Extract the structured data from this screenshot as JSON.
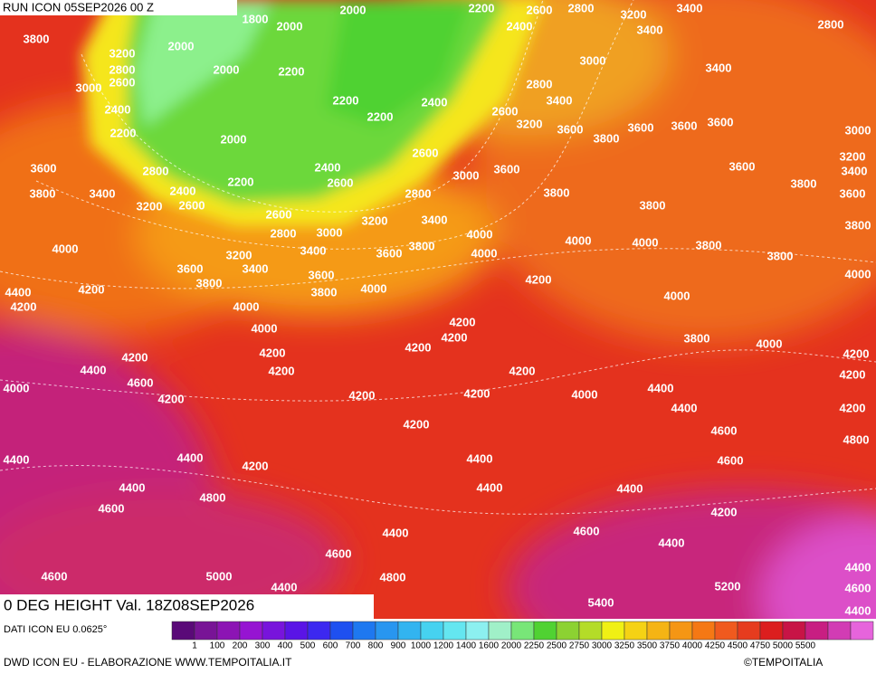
{
  "header": {
    "title": "RUN ICON 05SEP2026 00 Z"
  },
  "map": {
    "contour_labels": [
      "1800",
      "2000",
      "2000",
      "2200",
      "2600",
      "2800",
      "3200",
      "3400",
      "2400",
      "3400",
      "2800",
      "3800",
      "3200",
      "2000",
      "2800",
      "2000",
      "2200",
      "3000",
      "2600",
      "3000",
      "3400",
      "2800",
      "3400",
      "2200",
      "2400",
      "2600",
      "2400",
      "2200",
      "3200",
      "3600",
      "3600",
      "3600",
      "3600",
      "3000",
      "2200",
      "2000",
      "3800",
      "3200",
      "3600",
      "2400",
      "2600",
      "3400",
      "2800",
      "3000",
      "3600",
      "3600",
      "2200",
      "2600",
      "3800",
      "3800",
      "3400",
      "2400",
      "2800",
      "3800",
      "3600",
      "3200",
      "2600",
      "3800",
      "2600",
      "3200",
      "3400",
      "3800",
      "2800",
      "3000",
      "4000",
      "4000",
      "3400",
      "3800",
      "4000",
      "4000",
      "3800",
      "4000",
      "3200",
      "3600",
      "3800",
      "3600",
      "3400",
      "3600",
      "4000",
      "3800",
      "4200",
      "4400",
      "4200",
      "3800",
      "4000",
      "4000",
      "4200",
      "4000",
      "4200",
      "4000",
      "4200",
      "3800",
      "4000",
      "4200",
      "4200",
      "4200",
      "4200",
      "4400",
      "4200",
      "4200",
      "4200",
      "4600",
      "4000",
      "4400",
      "4200",
      "4200",
      "4200",
      "4000",
      "4400",
      "4200",
      "4200",
      "4600",
      "4800",
      "4400",
      "4400",
      "4200",
      "4400",
      "4600",
      "4400",
      "4400",
      "4400",
      "4800",
      "4600",
      "4200",
      "4400",
      "4600",
      "4400",
      "4600",
      "4600",
      "5000",
      "4400",
      "4400",
      "4800",
      "5200",
      "4600",
      "5400",
      "4400"
    ]
  },
  "footer": {
    "title": "0 DEG HEIGHT Val. 18Z08SEP2026",
    "source": "DATI ICON EU 0.0625°",
    "credit": "DWD ICON EU - ELABORAZIONE WWW.TEMPOITALIA.IT",
    "copyright": "©TEMPOITALIA"
  },
  "colorbar": {
    "labels": [
      "1",
      "100",
      "200",
      "300",
      "400",
      "500",
      "600",
      "700",
      "800",
      "900",
      "1000",
      "1200",
      "1400",
      "1600",
      "2000",
      "2250",
      "2500",
      "2750",
      "3000",
      "3250",
      "3500",
      "3750",
      "4000",
      "4250",
      "4500",
      "4750",
      "5000",
      "5500"
    ],
    "colors": [
      "#5a0a78",
      "#781496",
      "#8c14b4",
      "#9614d2",
      "#7814dc",
      "#5a14e6",
      "#3c28f0",
      "#1e50f0",
      "#1e78f0",
      "#2896f0",
      "#32b4f0",
      "#46d2f0",
      "#64e6f0",
      "#8cf0f0",
      "#a0f0c8",
      "#78e678",
      "#50d232",
      "#8cd232",
      "#b4dc28",
      "#f0f014",
      "#f5d214",
      "#f5b414",
      "#f59614",
      "#f57814",
      "#f05a1e",
      "#e63c1e",
      "#dc1e1e",
      "#c81446",
      "#c81e82",
      "#d23cb4",
      "#e664dc"
    ]
  }
}
